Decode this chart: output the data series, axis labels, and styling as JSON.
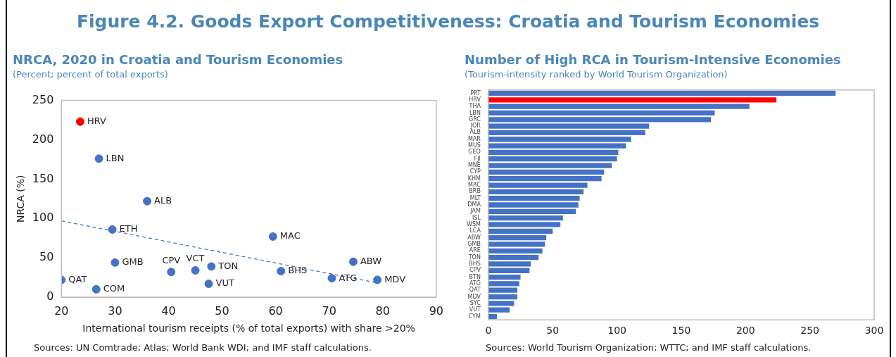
{
  "chart_data": [
    {
      "type": "scatter",
      "title": "NRCA, 2020 in Croatia and Tourism Economies",
      "subtitle": "(Percent; percent of total exports)",
      "xlabel": "International tourism receipts (% of total exports) with share >20%",
      "ylabel": "NRCA (%)",
      "xlim": [
        20,
        90
      ],
      "xticks": [
        20,
        30,
        40,
        50,
        60,
        70,
        80,
        90
      ],
      "ylim": [
        0,
        250
      ],
      "yticks": [
        0,
        50,
        100,
        150,
        200,
        250
      ],
      "legend": false,
      "marker": "circle",
      "series": [
        {
          "type": "scatter",
          "color": "#4472c4",
          "x": [
            23.5,
            27,
            36,
            29.5,
            59.5,
            30,
            20,
            26.5,
            40.5,
            45,
            48,
            47.5,
            61,
            70.5,
            74.5,
            79
          ],
          "values": [
            223,
            176,
            122,
            86,
            77,
            44,
            22,
            10,
            32,
            34,
            39,
            17,
            33,
            24,
            45,
            22
          ],
          "colors": [
            "#ff0000",
            "#4472c4",
            "#4472c4",
            "#4472c4",
            "#4472c4",
            "#4472c4",
            "#4472c4",
            "#4472c4",
            "#4472c4",
            "#4472c4",
            "#4472c4",
            "#4472c4",
            "#4472c4",
            "#4472c4",
            "#4472c4",
            "#4472c4"
          ]
        },
        {
          "type": "line",
          "color": "#4472c4",
          "x": [
            20,
            79
          ],
          "values": [
            97,
            18
          ],
          "line_style": "dashed",
          "marker": "none"
        }
      ],
      "annotations": [
        "Figure 4.2. Goods Export Competitiveness: Croatia and Tourism Economies",
        "Sources: UN Comtrade; Atlas; World Bank WDI; and IMF staff calculations.",
        {
          "text": "HRV",
          "x": 23.5,
          "y": 223
        },
        {
          "text": "LBN",
          "x": 27,
          "y": 176
        },
        {
          "text": "ALB",
          "x": 36,
          "y": 122
        },
        {
          "text": "ETH",
          "x": 29.5,
          "y": 86
        },
        {
          "text": "MAC",
          "x": 59.5,
          "y": 77
        },
        {
          "text": "GMB",
          "x": 30,
          "y": 44
        },
        {
          "text": "QAT",
          "x": 20,
          "y": 22
        },
        {
          "text": "COM",
          "x": 26.5,
          "y": 10
        },
        {
          "text": "CPV",
          "x": 40.5,
          "y": 32
        },
        {
          "text": "VCT",
          "x": 45,
          "y": 34
        },
        {
          "text": "TON",
          "x": 48,
          "y": 39
        },
        {
          "text": "VUT",
          "x": 47.5,
          "y": 17
        },
        {
          "text": "BHS",
          "x": 61,
          "y": 33
        },
        {
          "text": "ATG",
          "x": 70.5,
          "y": 24
        },
        {
          "text": "ABW",
          "x": 74.5,
          "y": 45
        },
        {
          "text": "MDV",
          "x": 79,
          "y": 22
        }
      ]
    },
    {
      "type": "bar",
      "orientation": "horizontal",
      "title": "Number of High RCA in Tourism-Intensive Economies",
      "subtitle": "(Tourism-intensity ranked by World Tourism Organization)",
      "legend": false,
      "categories": [
        "PRT",
        "HRV",
        "THA",
        "LBN",
        "GRC",
        "JOR",
        "ALB",
        "MAR",
        "MUS",
        "GEO",
        "FJI",
        "MNE",
        "CYP",
        "KHM",
        "MAC",
        "BRB",
        "MLT",
        "DMA",
        "JAM",
        "ISL",
        "WSM",
        "LCA",
        "ABW",
        "GMB",
        "ARE",
        "TON",
        "BHS",
        "CPV",
        "BTN",
        "ATG",
        "QAT",
        "MDV",
        "SYC",
        "VUT",
        "CYM"
      ],
      "values": [
        270,
        224,
        203,
        176,
        173,
        125,
        122,
        111,
        107,
        101,
        100,
        96,
        90,
        88,
        77,
        74,
        71,
        70,
        68,
        58,
        56,
        50,
        45,
        44,
        42,
        39,
        33,
        32,
        25,
        24,
        22.5,
        22.5,
        20,
        16.5,
        6.6
      ],
      "colors": [
        "#4472c4",
        "#ff0000",
        "#4472c4",
        "#4472c4",
        "#4472c4",
        "#4472c4",
        "#4472c4",
        "#4472c4",
        "#4472c4",
        "#4472c4",
        "#4472c4",
        "#4472c4",
        "#4472c4",
        "#4472c4",
        "#4472c4",
        "#4472c4",
        "#4472c4",
        "#4472c4",
        "#4472c4",
        "#4472c4",
        "#4472c4",
        "#4472c4",
        "#4472c4",
        "#4472c4",
        "#4472c4",
        "#4472c4",
        "#4472c4",
        "#4472c4",
        "#4472c4",
        "#4472c4",
        "#4472c4",
        "#4472c4",
        "#4472c4",
        "#4472c4",
        "#4472c4"
      ],
      "xlim": [
        0,
        300
      ],
      "xticks": [
        0,
        50,
        100,
        150,
        200,
        250,
        300
      ],
      "annotations": [
        "Sources: World Tourism Organization; WTTC; and IMF staff calculations."
      ]
    }
  ]
}
